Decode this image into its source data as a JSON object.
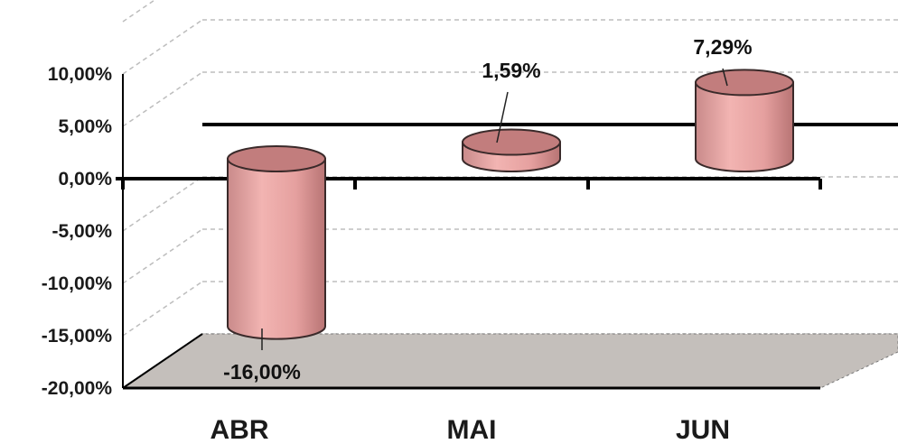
{
  "chart_data": {
    "type": "bar",
    "style": "3d-cylinder",
    "categories": [
      "ABR",
      "MAI",
      "JUN"
    ],
    "values": [
      -16.0,
      1.59,
      7.29
    ],
    "data_labels": [
      "-16,00%",
      "1,59%",
      "7,29%"
    ],
    "ylim": [
      -20,
      10
    ],
    "yticks": [
      {
        "value": 10,
        "label": "10,00%"
      },
      {
        "value": 5,
        "label": "5,00%"
      },
      {
        "value": 0,
        "label": "0,00%"
      },
      {
        "value": -5,
        "label": "-5,00%"
      },
      {
        "value": -10,
        "label": "-10,00%"
      },
      {
        "value": -15,
        "label": "-15,00%"
      },
      {
        "value": -20,
        "label": "-20,00%"
      }
    ],
    "grid": true,
    "legend": "none",
    "colors": {
      "bar_side": "#e8a0a0",
      "bar_top": "#c27d7d",
      "bar_stroke": "#3a2a2a",
      "floor": "#c4bfbb",
      "grid": "#bdbdbd",
      "axis": "#000000"
    }
  }
}
